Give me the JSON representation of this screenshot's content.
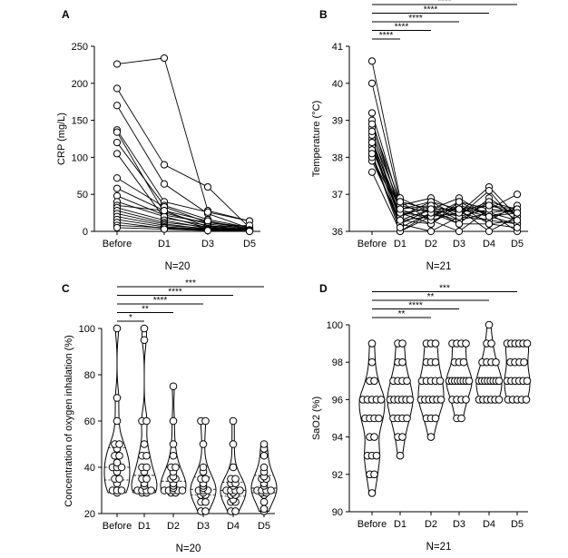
{
  "chart_data": [
    {
      "panel": "A",
      "type": "line",
      "ylabel": "CRP (mg/L)",
      "n_label": "N=20",
      "categories": [
        "Before",
        "D1",
        "D3",
        "D5"
      ],
      "ylim": [
        0,
        250
      ],
      "yticks": [
        0,
        50,
        100,
        150,
        200,
        250
      ],
      "series": [
        {
          "values": [
            226,
            234,
            28,
            14
          ]
        },
        {
          "values": [
            193,
            90,
            60,
            5
          ]
        },
        {
          "values": [
            170,
            64,
            24,
            4
          ]
        },
        {
          "values": [
            137,
            40,
            26,
            14
          ]
        },
        {
          "values": [
            134,
            25,
            10,
            3
          ]
        },
        {
          "values": [
            120,
            35,
            16,
            5
          ]
        },
        {
          "values": [
            105,
            18,
            8,
            2
          ]
        },
        {
          "values": [
            72,
            33,
            12,
            4
          ]
        },
        {
          "values": [
            58,
            28,
            6,
            3
          ]
        },
        {
          "values": [
            48,
            22,
            12,
            6
          ]
        },
        {
          "values": [
            40,
            20,
            5,
            2
          ]
        },
        {
          "values": [
            35,
            28,
            14,
            3
          ]
        },
        {
          "values": [
            32,
            15,
            4,
            2
          ]
        },
        {
          "values": [
            28,
            12,
            6,
            8
          ]
        },
        {
          "values": [
            24,
            10,
            3,
            1
          ]
        },
        {
          "values": [
            20,
            8,
            4,
            2
          ]
        },
        {
          "values": [
            16,
            6,
            3,
            1
          ]
        },
        {
          "values": [
            12,
            4,
            2,
            1
          ]
        },
        {
          "values": [
            8,
            5,
            2,
            0
          ]
        },
        {
          "values": [
            5,
            3,
            1,
            0
          ]
        }
      ]
    },
    {
      "panel": "B",
      "type": "line",
      "ylabel": "Temperature (°C)",
      "n_label": "N=21",
      "categories": [
        "Before",
        "D1",
        "D2",
        "D3",
        "D4",
        "D5"
      ],
      "ylim": [
        36,
        41
      ],
      "yticks": [
        36,
        37,
        38,
        39,
        40,
        41
      ],
      "significance": [
        {
          "to": 1,
          "label": "****"
        },
        {
          "to": 2,
          "label": "****"
        },
        {
          "to": 3,
          "label": "****"
        },
        {
          "to": 4,
          "label": "****"
        },
        {
          "to": 5,
          "label": "****"
        }
      ],
      "series": [
        {
          "values": [
            40.6,
            36.9,
            36.5,
            36.6,
            36.5,
            36.3
          ]
        },
        {
          "values": [
            40.0,
            36.8,
            36.6,
            36.9,
            36.4,
            36.5
          ]
        },
        {
          "values": [
            39.2,
            36.7,
            36.9,
            36.5,
            37.2,
            36.4
          ]
        },
        {
          "values": [
            39.0,
            36.5,
            36.2,
            36.8,
            36.6,
            37.0
          ]
        },
        {
          "values": [
            38.8,
            36.6,
            36.8,
            36.4,
            37.1,
            36.2
          ]
        },
        {
          "values": [
            38.5,
            36.4,
            36.7,
            36.3,
            36.8,
            36.6
          ]
        },
        {
          "values": [
            38.4,
            36.3,
            36.4,
            36.7,
            36.5,
            36.6
          ]
        },
        {
          "values": [
            38.3,
            36.2,
            36.6,
            36.2,
            36.9,
            36.4
          ]
        },
        {
          "values": [
            38.2,
            36.6,
            36.3,
            36.5,
            36.3,
            36.7
          ]
        },
        {
          "values": [
            38.1,
            36.0,
            36.5,
            36.6,
            36.4,
            36.2
          ]
        },
        {
          "values": [
            38.0,
            36.5,
            36.6,
            36.4,
            36.6,
            36.5
          ]
        },
        {
          "values": [
            37.9,
            36.3,
            36.2,
            36.7,
            36.2,
            36.3
          ]
        },
        {
          "values": [
            37.6,
            36.0,
            36.4,
            36.5,
            36.7,
            36.6
          ]
        },
        {
          "values": [
            38.6,
            36.7,
            36.5,
            36.3,
            36.5,
            36.0
          ]
        },
        {
          "values": [
            38.3,
            36.4,
            36.8,
            36.6,
            36.0,
            36.4
          ]
        },
        {
          "values": [
            38.9,
            36.8,
            36.3,
            36.0,
            36.6,
            36.5
          ]
        },
        {
          "values": [
            38.0,
            36.2,
            36.0,
            36.4,
            36.3,
            36.2
          ]
        },
        {
          "values": [
            38.2,
            36.5,
            36.4,
            36.8,
            36.4,
            36.6
          ]
        },
        {
          "values": [
            38.4,
            36.6,
            36.7,
            36.5,
            36.8,
            36.3
          ]
        },
        {
          "values": [
            38.1,
            36.1,
            36.5,
            36.2,
            36.2,
            36.1
          ]
        },
        {
          "values": [
            38.7,
            36.3,
            36.6,
            36.6,
            36.7,
            36.5
          ]
        }
      ]
    },
    {
      "panel": "C",
      "type": "violin",
      "ylabel": "Concentration of oxygen inhalation (%)",
      "n_label": "N=20",
      "categories": [
        "Before",
        "D1",
        "D2",
        "D3",
        "D4",
        "D5"
      ],
      "ylim": [
        20,
        100
      ],
      "yticks": [
        20,
        40,
        60,
        80,
        100
      ],
      "significance": [
        {
          "to": 1,
          "label": "*"
        },
        {
          "to": 2,
          "label": "**"
        },
        {
          "to": 3,
          "label": "****"
        },
        {
          "to": 4,
          "label": "****"
        },
        {
          "to": 5,
          "label": "***"
        }
      ],
      "groups": [
        {
          "values": [
            100,
            70,
            60,
            50,
            50,
            48,
            45,
            45,
            42,
            40,
            40,
            40,
            38,
            35,
            35,
            33,
            30,
            30,
            30,
            29
          ]
        },
        {
          "values": [
            100,
            95,
            60,
            60,
            50,
            45,
            45,
            40,
            40,
            38,
            35,
            35,
            33,
            32,
            30,
            30,
            30,
            30,
            29,
            29
          ]
        },
        {
          "values": [
            75,
            60,
            50,
            45,
            40,
            40,
            38,
            36,
            35,
            35,
            33,
            32,
            31,
            30,
            30,
            30,
            30,
            30,
            29,
            29
          ]
        },
        {
          "values": [
            60,
            60,
            50,
            40,
            38,
            35,
            35,
            33,
            32,
            31,
            30,
            30,
            30,
            29,
            28,
            28,
            25,
            25,
            21,
            21
          ]
        },
        {
          "values": [
            60,
            50,
            40,
            35,
            35,
            33,
            33,
            32,
            30,
            30,
            30,
            30,
            29,
            28,
            28,
            26,
            25,
            25,
            21,
            21
          ]
        },
        {
          "values": [
            50,
            48,
            45,
            40,
            38,
            36,
            35,
            35,
            33,
            32,
            30,
            30,
            30,
            30,
            29,
            29,
            28,
            25,
            22,
            21
          ]
        }
      ]
    },
    {
      "panel": "D",
      "type": "violin",
      "ylabel": "SaO2 (%)",
      "n_label": "N=21",
      "categories": [
        "Before",
        "D1",
        "D2",
        "D3",
        "D4",
        "D5"
      ],
      "ylim": [
        90,
        100
      ],
      "yticks": [
        90,
        92,
        94,
        96,
        98,
        100
      ],
      "significance": [
        {
          "to": 2,
          "label": "**"
        },
        {
          "to": 3,
          "label": "****"
        },
        {
          "to": 4,
          "label": "**"
        },
        {
          "to": 5,
          "label": "***"
        }
      ],
      "groups": [
        {
          "values": [
            99,
            98,
            97,
            96,
            96,
            96,
            96,
            95,
            95,
            95,
            94,
            94,
            93,
            93,
            93,
            92,
            92,
            91,
            97,
            96,
            95
          ]
        },
        {
          "values": [
            99,
            99,
            98,
            98,
            97,
            97,
            97,
            96,
            96,
            96,
            96,
            96,
            95,
            95,
            95,
            95,
            94,
            94,
            93,
            96,
            97
          ]
        },
        {
          "values": [
            99,
            99,
            99,
            98,
            98,
            97,
            97,
            97,
            97,
            96,
            96,
            96,
            96,
            96,
            95,
            95,
            95,
            94,
            96,
            97,
            98
          ]
        },
        {
          "values": [
            99,
            99,
            99,
            99,
            98,
            98,
            97,
            97,
            97,
            97,
            97,
            97,
            96,
            96,
            96,
            95,
            95,
            97,
            98,
            97,
            96
          ]
        },
        {
          "values": [
            100,
            99,
            99,
            98,
            98,
            98,
            97,
            97,
            97,
            97,
            97,
            97,
            96,
            96,
            96,
            96,
            96,
            97,
            98,
            97,
            96
          ]
        },
        {
          "values": [
            99,
            99,
            99,
            99,
            99,
            98,
            98,
            98,
            97,
            97,
            97,
            97,
            97,
            96,
            96,
            96,
            96,
            98,
            99,
            97,
            96
          ]
        }
      ]
    }
  ]
}
